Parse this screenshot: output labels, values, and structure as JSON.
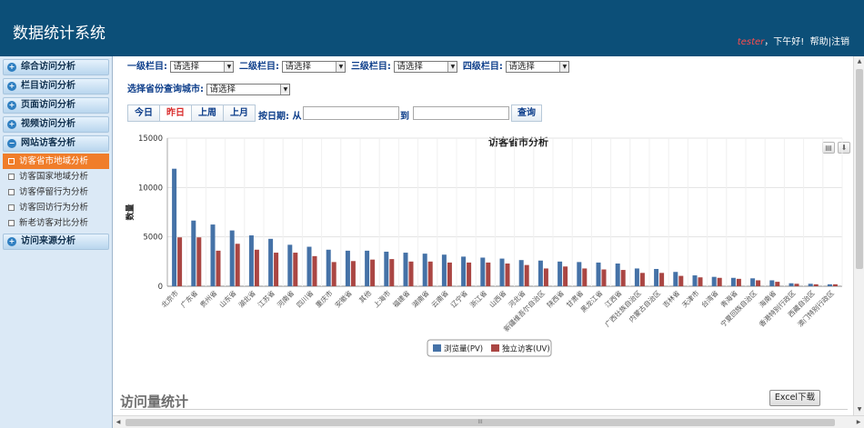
{
  "header": {
    "title": "数据统计系统",
    "username": "tester",
    "greeting": "，下午好!",
    "help": "帮助",
    "separator": "|",
    "logout": "注销"
  },
  "sidebar": {
    "groups": [
      {
        "label": "综合访问分析",
        "icon": "plus-icon"
      },
      {
        "label": "栏目访问分析",
        "icon": "plus-icon"
      },
      {
        "label": "页面访问分析",
        "icon": "plus-icon"
      },
      {
        "label": "视频访问分析",
        "icon": "plus-icon"
      },
      {
        "label": "网站访客分析",
        "icon": "minus-icon"
      },
      {
        "label": "访问来源分析",
        "icon": "plus-icon"
      }
    ],
    "sub_items": [
      {
        "label": "访客省市地域分析",
        "active": true
      },
      {
        "label": "访客国家地域分析"
      },
      {
        "label": "访客停留行为分析"
      },
      {
        "label": "访客回访行为分析"
      },
      {
        "label": "新老访客对比分析"
      }
    ]
  },
  "filters": {
    "level1_label": "一级栏目:",
    "level2_label": "二级栏目:",
    "level3_label": "三级栏目:",
    "level4_label": "四级栏目:",
    "select_placeholder": "请选择",
    "city_label": "选择省份查询城市:"
  },
  "date_tabs": [
    "今日",
    "昨日",
    "上周",
    "上月"
  ],
  "active_tab": "昨日",
  "date_range": {
    "from_label": "按日期: 从",
    "to_label": "到",
    "query_button": "查询"
  },
  "chart_data": {
    "type": "bar",
    "title": "访客省市分析",
    "ylabel": "数量",
    "xlabel": "",
    "ylim": [
      0,
      15000
    ],
    "yticks": [
      0,
      5000,
      10000,
      15000
    ],
    "legend_position": "bottom",
    "categories": [
      "北京市",
      "广东省",
      "贵州省",
      "山东省",
      "湖北省",
      "江苏省",
      "河南省",
      "四川省",
      "重庆市",
      "安徽省",
      "其他",
      "上海市",
      "福建省",
      "湖南省",
      "云南省",
      "辽宁省",
      "浙江省",
      "山西省",
      "河北省",
      "新疆维吾尔自治区",
      "陕西省",
      "甘肃省",
      "黑龙江省",
      "江西省",
      "广西壮族自治区",
      "内蒙古自治区",
      "吉林省",
      "天津市",
      "台湾省",
      "青海省",
      "宁夏回族自治区",
      "海南省",
      "香港特别行政区",
      "西藏自治区",
      "澳门特别行政区"
    ],
    "series": [
      {
        "name": "浏览量(PV)",
        "color": "#4572a7",
        "values": [
          11900,
          6650,
          6250,
          5650,
          5150,
          4800,
          4200,
          4000,
          3700,
          3600,
          3600,
          3500,
          3400,
          3300,
          3200,
          3000,
          2900,
          2800,
          2650,
          2600,
          2500,
          2450,
          2400,
          2300,
          1800,
          1750,
          1450,
          1100,
          950,
          850,
          800,
          600,
          300,
          250,
          200
        ]
      },
      {
        "name": "独立访客(UV)",
        "color": "#aa4643",
        "values": [
          4950,
          4950,
          3600,
          4300,
          3700,
          3400,
          3400,
          3050,
          2450,
          2550,
          2700,
          2750,
          2500,
          2500,
          2400,
          2400,
          2400,
          2300,
          2150,
          1800,
          2000,
          1800,
          1700,
          1650,
          1350,
          1350,
          1050,
          900,
          850,
          750,
          600,
          450,
          250,
          200,
          200
        ]
      }
    ]
  },
  "tools": {
    "print": "print-icon",
    "export": "download-icon"
  },
  "section": {
    "title": "访问量统计",
    "excel_button": "Excel下载"
  }
}
